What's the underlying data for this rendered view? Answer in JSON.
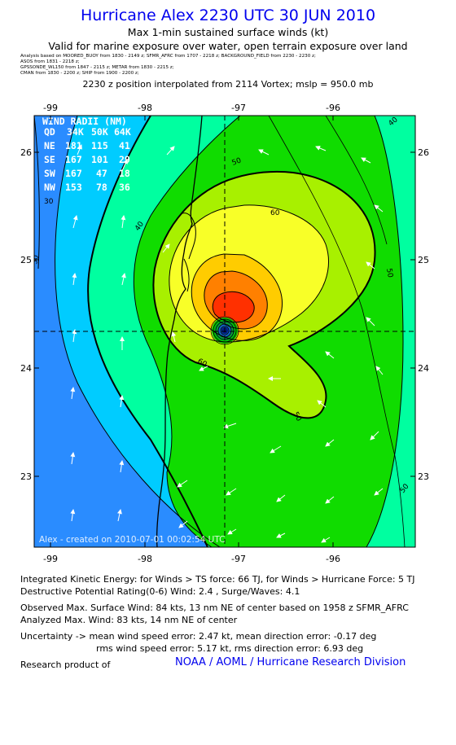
{
  "header": {
    "title": "Hurricane Alex 2230 UTC 30 JUN 2010",
    "subtitle": "Max 1-min sustained surface winds (kt)",
    "valid": "Valid for marine exposure over water, open terrain exposure over land"
  },
  "sources": [
    "Analysis based on  MOORED_BUOY from 1830 - 2149 z;  SFMR_AFRC from 1707 - 2218 z;  BACKGROUND_FIELD from 2230 - 2230 z;",
    "ASOS from 1831 - 2218 z;",
    "GPSSONDE_WL150 from 1847 - 2115 z;  METAR from 1830 - 2215 z;",
    "CMAN from 1830 - 2200 z;  SHIP from 1900 - 2200 z;"
  ],
  "position_line": "2230 z position interpolated from 2114 Vortex; mslp = 950.0 mb",
  "map": {
    "lon_ticks": [
      "-99",
      "-98",
      "-97",
      "-96"
    ],
    "lat_ticks": [
      "26",
      "25",
      "24",
      "23"
    ],
    "lon_range": [
      -99.1,
      -95.75
    ],
    "lat_range": [
      22.35,
      26.35
    ],
    "center": {
      "lon": -97.1,
      "lat": 24.3
    },
    "contour_labels": [
      "30",
      "40",
      "40",
      "50",
      "50",
      "50",
      "60",
      "60",
      "50",
      "40",
      "30"
    ],
    "colors": {
      "lt30": "#2a8cff",
      "30-40": "#00ccff",
      "40-50": "#00ffa0",
      "50-64": "#10dc00",
      "64-72": "#a8f000",
      "72-80": "#f8ff28",
      "80-90": "#ffcc00",
      "90+": "#ff8000",
      "core": "#ff3000"
    },
    "watermark": "Alex - created on 2010-07-01 00:02:54 UTC",
    "wind_radii": {
      "heading": "WIND RADII (NM)",
      "columns": [
        "QD",
        "34K",
        "50K",
        "64K"
      ],
      "rows": [
        [
          "NE",
          "181",
          "115",
          "41"
        ],
        [
          "SE",
          "167",
          "101",
          "29"
        ],
        [
          "SW",
          "167",
          "47",
          "18"
        ],
        [
          "NW",
          "153",
          "78",
          "36"
        ]
      ]
    }
  },
  "footer": {
    "ike": "Integrated Kinetic Energy:  for Winds > TS force: 66 TJ,  for Winds > Hurricane Force: 5 TJ",
    "dpr": "Destructive Potential Rating(0-6)   Wind: 2.4 , Surge/Waves: 4.1",
    "observed": "Observed Max. Surface Wind: 84 kts, 13 nm NE of center based on 1958 z SFMR_AFRC",
    "analyzed": "Analyzed Max. Wind: 83 kts, 14 nm NE of center",
    "uncertainty1": "Uncertainty -> mean wind speed error: 2.47 kt,   mean direction error:  -0.17 deg",
    "uncertainty2": "rms wind speed error: 5.17 kt,   rms direction error: 6.93 deg",
    "research": "Research product of",
    "credit": "NOAA / AOML / Hurricane Research Division"
  }
}
